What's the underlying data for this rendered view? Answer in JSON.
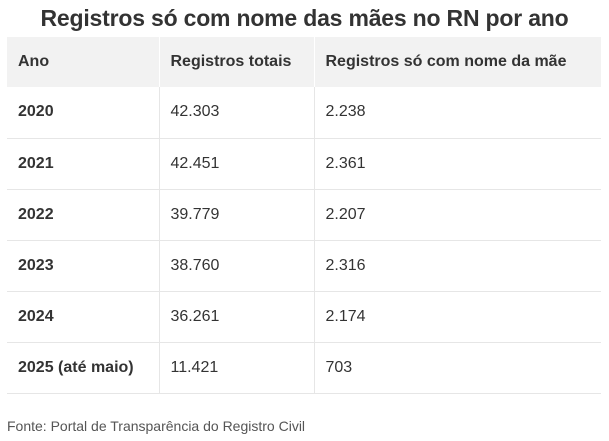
{
  "title": "Registros só com nome das mães no RN por ano",
  "table": {
    "headers": [
      "Ano",
      "Registros totais",
      "Registros só com nome da mãe"
    ],
    "rows": [
      {
        "ano": "2020",
        "total": "42.303",
        "mae": "2.238"
      },
      {
        "ano": "2021",
        "total": "42.451",
        "mae": "2.361"
      },
      {
        "ano": "2022",
        "total": "39.779",
        "mae": "2.207"
      },
      {
        "ano": "2023",
        "total": "38.760",
        "mae": "2.316"
      },
      {
        "ano": "2024",
        "total": "36.261",
        "mae": "2.174"
      },
      {
        "ano": "2025 (até maio)",
        "total": "11.421",
        "mae": "703"
      }
    ]
  },
  "source": "Fonte: Portal de Transparência do Registro Civil",
  "colors": {
    "text": "#333333",
    "header_bg": "#f2f2f2",
    "row_border": "#e6e6e6"
  }
}
